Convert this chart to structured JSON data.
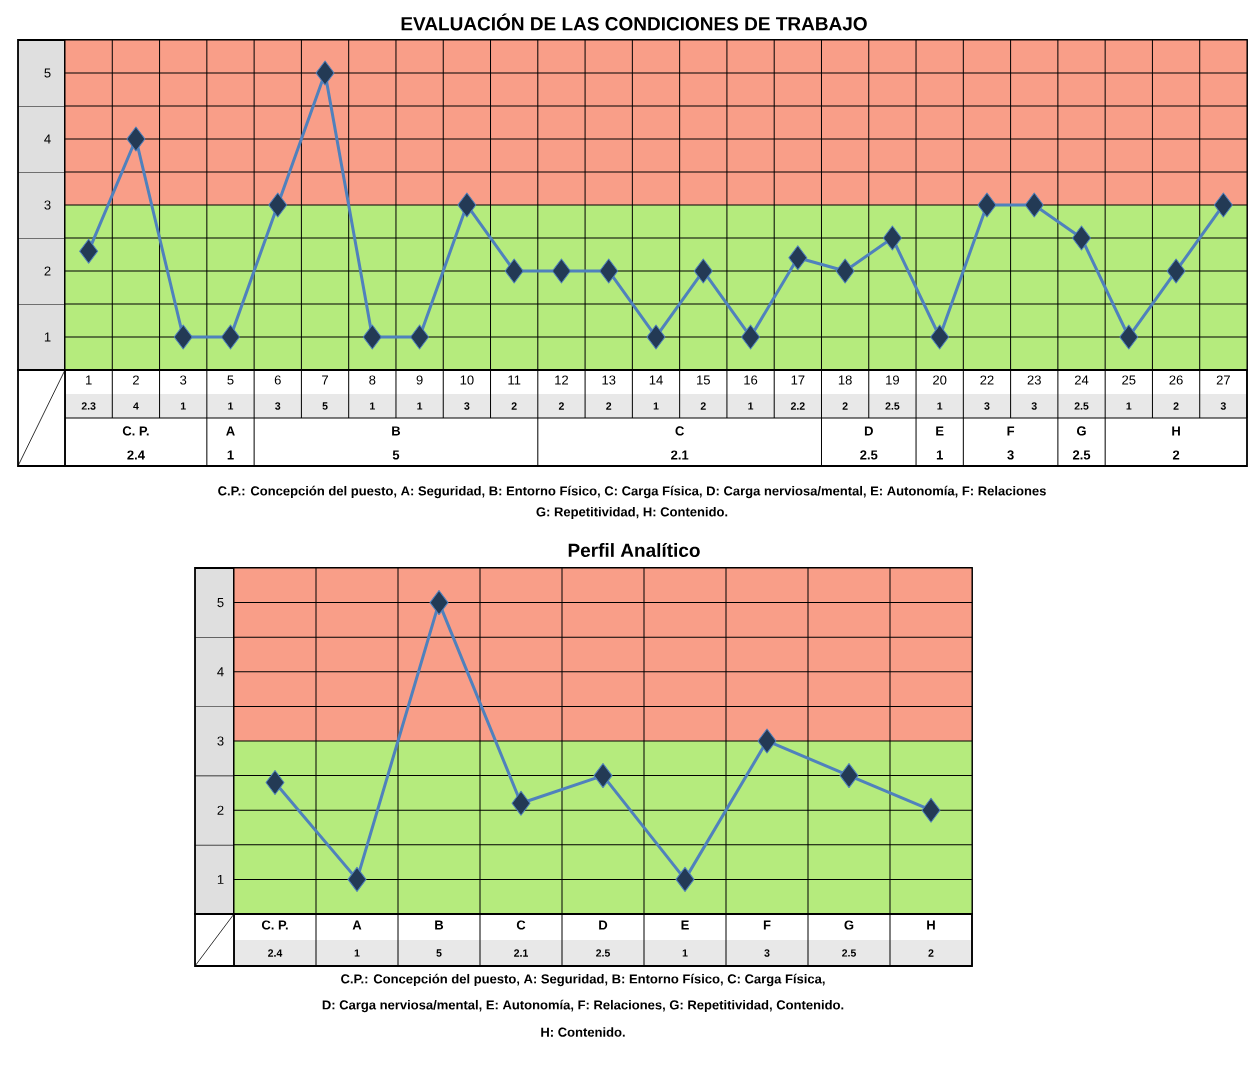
{
  "chart_data": [
    {
      "type": "line",
      "title": "EVALUACIÓN DE LAS CONDICIONES DE TRABAJO",
      "categories": [
        "1",
        "2",
        "3",
        "5",
        "6",
        "7",
        "8",
        "9",
        "10",
        "11",
        "12",
        "13",
        "14",
        "15",
        "16",
        "17",
        "18",
        "19",
        "20",
        "22",
        "23",
        "24",
        "25",
        "26",
        "27"
      ],
      "values": [
        2.3,
        4,
        1,
        1,
        3,
        5,
        1,
        1,
        3,
        2,
        2,
        2,
        1,
        2,
        1,
        2.2,
        2,
        2.5,
        1,
        3,
        3,
        2.5,
        1,
        2,
        3
      ],
      "color": "#4f81bd",
      "marker": "diamond",
      "ylim": [
        0.5,
        5.5
      ],
      "yticks": [
        1,
        2,
        3,
        4,
        5
      ],
      "grid": true,
      "data_labels": true,
      "bands": [
        {
          "axis": "y",
          "from": 0.5,
          "to": 3,
          "color": "#b5eb7d"
        },
        {
          "axis": "y",
          "from": 3,
          "to": 5.5,
          "color": "#f99e88"
        }
      ],
      "annotations": [
        "C. P.",
        "2.4",
        "A",
        "1",
        "B",
        "5",
        "C",
        "2.1",
        "D",
        "2.5",
        "E",
        "1",
        "F",
        "3",
        "G",
        "2.5",
        "H",
        "2",
        "C.P.: Concepción del puesto, A: Seguridad,  B: Entorno Físico, C: Carga Física, D: Carga nerviosa/mental, E: Autonomía, F: Relaciones",
        "G: Repetitividad, H: Contenido."
      ]
    },
    {
      "type": "line",
      "title": "Perfil Analítico",
      "categories": [
        "C. P.",
        "A",
        "B",
        "C",
        "D",
        "E",
        "F",
        "G",
        "H"
      ],
      "values": [
        2.4,
        1,
        5,
        2.1,
        2.5,
        1,
        3,
        2.5,
        2
      ],
      "color": "#4f81bd",
      "marker": "diamond",
      "ylim": [
        0.5,
        5.5
      ],
      "yticks": [
        1,
        2,
        3,
        4,
        5
      ],
      "grid": true,
      "data_labels": true,
      "bands": [
        {
          "axis": "y",
          "from": 0.5,
          "to": 3,
          "color": "#b5eb7d"
        },
        {
          "axis": "y",
          "from": 3,
          "to": 5.5,
          "color": "#f99e88"
        }
      ],
      "annotations": [
        "C.P.: Concepción del puesto, A: Seguridad, B: Entorno Físico, C: Carga Física,",
        "D: Carga nerviosa/mental, E: Autonomía, F: Relaciones, G: Repetitividad, Contenido.",
        "H: Contenido."
      ]
    }
  ]
}
